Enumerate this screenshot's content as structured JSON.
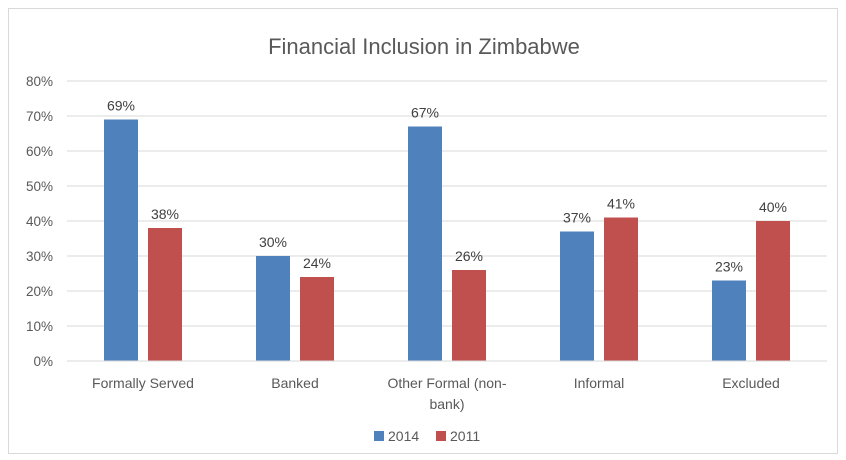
{
  "chart_data": {
    "type": "bar",
    "title": "Financial Inclusion in Zimbabwe",
    "categories": [
      [
        "Formally Served"
      ],
      [
        "Banked"
      ],
      [
        "Other Formal (non-",
        "bank)"
      ],
      [
        "Informal"
      ],
      [
        "Excluded"
      ]
    ],
    "series": [
      {
        "name": "2014",
        "color": "#4f81bd",
        "values": [
          69,
          30,
          67,
          37,
          23
        ],
        "labels": [
          "69%",
          "30%",
          "67%",
          "37%",
          "23%"
        ]
      },
      {
        "name": "2011",
        "color": "#c0504d",
        "values": [
          38,
          24,
          26,
          41,
          40
        ],
        "labels": [
          "38%",
          "24%",
          "26%",
          "41%",
          "40%"
        ]
      }
    ],
    "ylim": [
      0,
      80
    ],
    "yticks": [
      0,
      10,
      20,
      30,
      40,
      50,
      60,
      70,
      80
    ],
    "ytick_labels": [
      "0%",
      "10%",
      "20%",
      "30%",
      "40%",
      "50%",
      "60%",
      "70%",
      "80%"
    ],
    "grid": true,
    "legend_position": "bottom"
  }
}
